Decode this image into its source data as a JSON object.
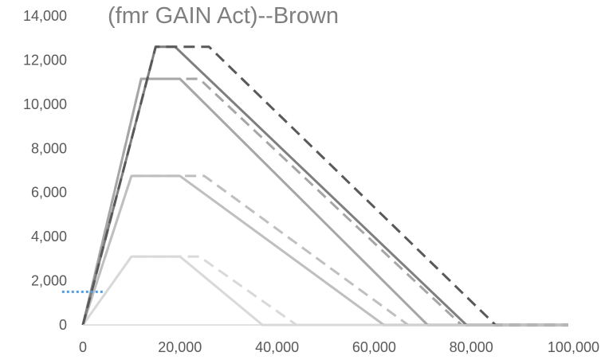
{
  "chart_data": {
    "type": "line",
    "title": "(fmr GAIN Act)--Brown",
    "xlabel": "",
    "ylabel": "",
    "xlim": [
      0,
      100000
    ],
    "ylim": [
      0,
      14000
    ],
    "x_ticks": [
      0,
      20000,
      40000,
      60000,
      80000,
      100000
    ],
    "x_tick_labels": [
      "0",
      "20,000",
      "40,000",
      "60,000",
      "80,000",
      "100,000"
    ],
    "y_ticks": [
      0,
      2000,
      4000,
      6000,
      8000,
      10000,
      12000,
      14000
    ],
    "y_tick_labels": [
      "0",
      "2,000",
      "4,000",
      "6,000",
      "8,000",
      "10,000",
      "12,000",
      "14,000"
    ],
    "grid": false,
    "legend": "none",
    "series": [
      {
        "color": "#d9d9d9",
        "dash": false,
        "x": [
          0,
          10000,
          20000,
          37000,
          100000
        ],
        "y": [
          0,
          3100,
          3100,
          0,
          0
        ]
      },
      {
        "color": "#d9d9d9",
        "dash": true,
        "x": [
          0,
          10000,
          24000,
          44000,
          100000
        ],
        "y": [
          0,
          3100,
          3100,
          0,
          0
        ]
      },
      {
        "color": "#bfbfbf",
        "dash": false,
        "x": [
          0,
          10000,
          20000,
          62000,
          100000
        ],
        "y": [
          0,
          6750,
          6750,
          0,
          0
        ]
      },
      {
        "color": "#bfbfbf",
        "dash": true,
        "x": [
          0,
          10000,
          25000,
          67000,
          100000
        ],
        "y": [
          0,
          6750,
          6750,
          0,
          0
        ]
      },
      {
        "color": "#a6a6a6",
        "dash": false,
        "x": [
          0,
          12000,
          20000,
          71000,
          100000
        ],
        "y": [
          0,
          11150,
          11150,
          0,
          0
        ]
      },
      {
        "color": "#a6a6a6",
        "dash": true,
        "x": [
          0,
          12000,
          24000,
          78000,
          100000
        ],
        "y": [
          0,
          11150,
          11150,
          0,
          0
        ]
      },
      {
        "color": "#7f7f7f",
        "dash": false,
        "x": [
          0,
          15000,
          19000,
          79000,
          100000
        ],
        "y": [
          0,
          12600,
          12600,
          0,
          0
        ]
      },
      {
        "color": "#595959",
        "dash": true,
        "x": [
          0,
          15000,
          26000,
          85000,
          100000
        ],
        "y": [
          0,
          12600,
          12600,
          0,
          0
        ]
      }
    ],
    "marker_line": {
      "color": "#5b9bd5",
      "x": [
        -2000,
        2000
      ],
      "y": 1500
    }
  }
}
